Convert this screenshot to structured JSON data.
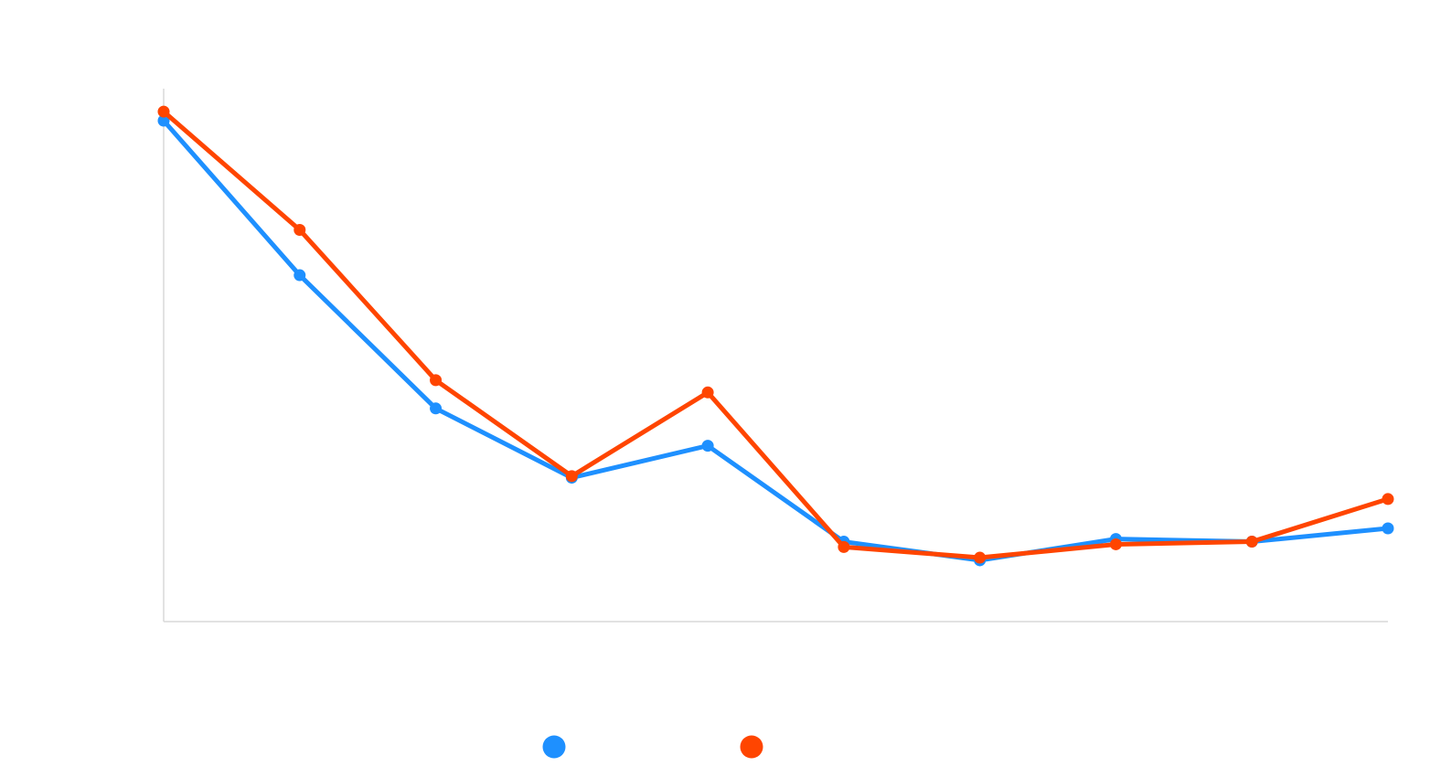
{
  "chart_data": {
    "type": "line",
    "title": "",
    "xlabel": "",
    "ylabel": "",
    "x": [
      1,
      2,
      3,
      4,
      5,
      6,
      7,
      8,
      9,
      10
    ],
    "ylim": [
      0,
      100
    ],
    "grid": false,
    "legend_position": "bottom",
    "series": [
      {
        "name": "",
        "color": "#1E90FF",
        "values": [
          94,
          65,
          40,
          27,
          33,
          15,
          11.5,
          15.5,
          15,
          17.5
        ]
      },
      {
        "name": "",
        "color": "#FF4500",
        "values": [
          95.7,
          73.5,
          45.3,
          27.3,
          43,
          14,
          12,
          14.5,
          15,
          23
        ]
      }
    ]
  }
}
